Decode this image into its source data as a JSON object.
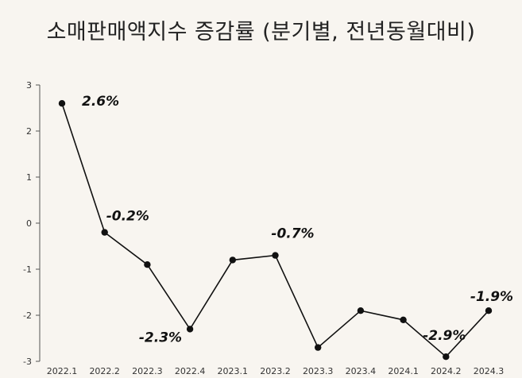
{
  "chart_data": {
    "type": "line",
    "title": "소매판매액지수 증감률 (분기별, 전년동월대비)",
    "xlabel": "",
    "ylabel": "",
    "categories": [
      "2022.1",
      "2022.2",
      "2022.3",
      "2022.4",
      "2023.1",
      "2023.2",
      "2023.3",
      "2023.4",
      "2024.1",
      "2024.2",
      "2024.3"
    ],
    "series": [
      {
        "name": "소매판매액지수 증감률",
        "values": [
          2.6,
          -0.2,
          -0.9,
          -2.3,
          -0.8,
          -0.7,
          -2.7,
          -1.9,
          -2.1,
          -2.9,
          -1.9
        ]
      }
    ],
    "yticks": [
      3,
      2,
      1,
      0,
      -1,
      -2,
      -3
    ],
    "ylim": [
      -3,
      3
    ],
    "grid": false,
    "annotations": [
      {
        "category": "2022.1",
        "text": "2.6%"
      },
      {
        "category": "2022.2",
        "text": "-0.2%"
      },
      {
        "category": "2022.4",
        "text": "-2.3%"
      },
      {
        "category": "2023.2",
        "text": "-0.7%"
      },
      {
        "category": "2024.2",
        "text": "-2.9%"
      },
      {
        "category": "2024.3",
        "text": "-1.9%"
      }
    ],
    "colors": {
      "background": "#f8f5f0",
      "line": "#111111",
      "axis": "#555555"
    }
  }
}
